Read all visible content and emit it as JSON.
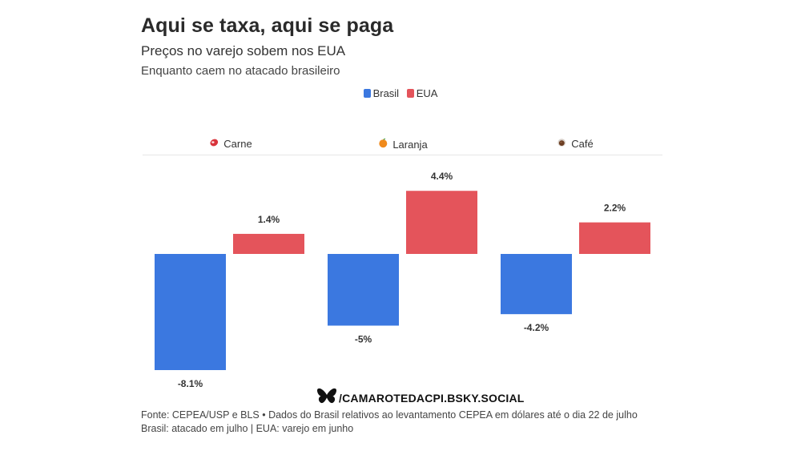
{
  "header": {
    "title": "Aqui se taxa, aqui se paga",
    "subtitle": "Preços no varejo sobem nos EUA",
    "subtitle2": "Enquanto caem no atacado brasileiro"
  },
  "legend": {
    "items": [
      {
        "label": "Brasil",
        "color": "#3b78e0"
      },
      {
        "label": "EUA",
        "color": "#e4545b"
      }
    ]
  },
  "chart_data": {
    "type": "bar",
    "title": "Aqui se taxa, aqui se paga",
    "categories": [
      "Carne",
      "Laranja",
      "Café"
    ],
    "category_icons": [
      "meat-icon",
      "orange-icon",
      "coffee-icon"
    ],
    "series": [
      {
        "name": "Brasil",
        "color": "#3b78e0",
        "values": [
          -8.1,
          -5,
          -4.2
        ],
        "labels": [
          "-8.1%",
          "-5%",
          "-4.2%"
        ]
      },
      {
        "name": "EUA",
        "color": "#e4545b",
        "values": [
          1.4,
          4.4,
          2.2
        ],
        "labels": [
          "1.4%",
          "4.4%",
          "2.2%"
        ]
      }
    ],
    "ylim": [
      -8.1,
      4.4
    ],
    "grid": false,
    "legend_position": "top-center",
    "layout": "faceted"
  },
  "credit": {
    "icon": "butterfly-icon",
    "text": "/CAMAROTEDACPI.BSKY.SOCIAL"
  },
  "footer": {
    "source_line": "Fonte: CEPEA/USP e BLS • Dados do Brasil relativos ao levantamento CEPEA em dólares até o dia 22 de julho",
    "note_line": "Brasil: atacado em julho | EUA: varejo em junho"
  }
}
